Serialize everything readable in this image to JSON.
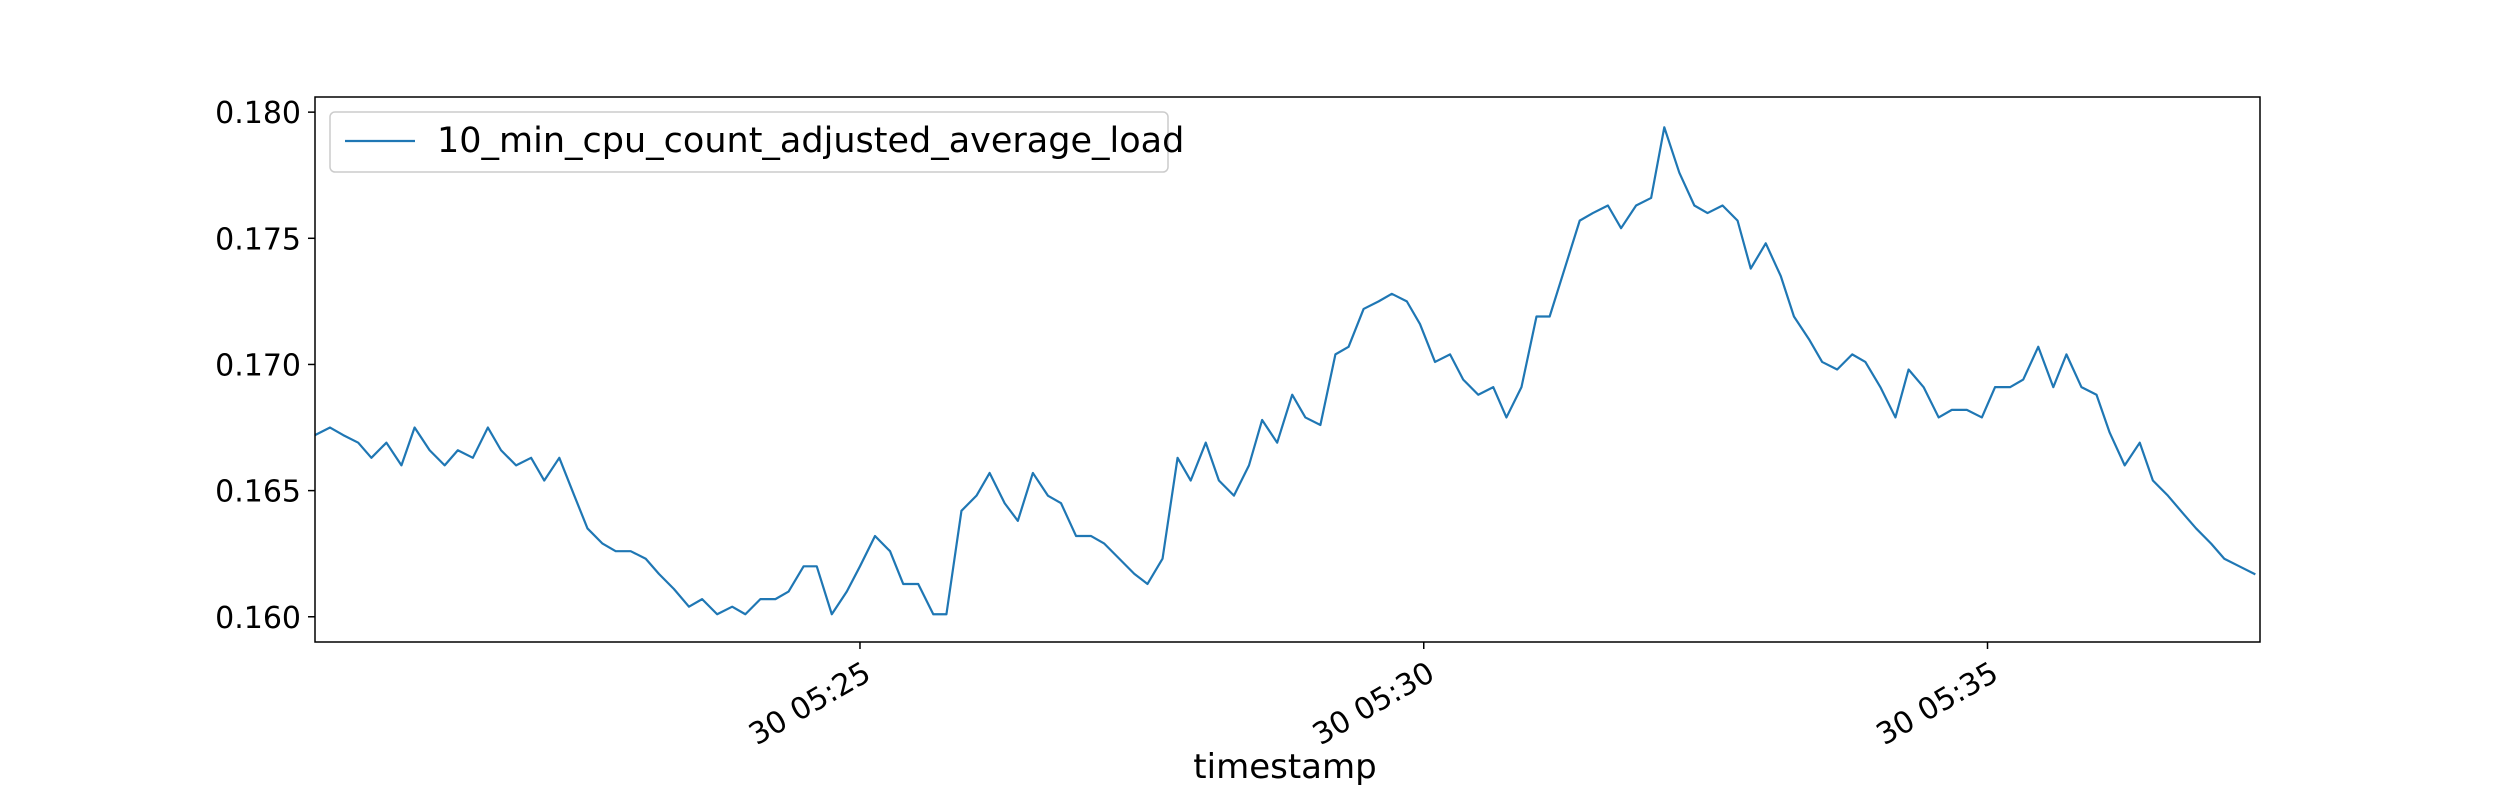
{
  "chart_data": {
    "type": "line",
    "title": "",
    "xlabel": "timestamp",
    "ylabel": "",
    "ylim": [
      0.159,
      0.1806
    ],
    "yticks": [
      0.16,
      0.165,
      0.17,
      0.175,
      0.18
    ],
    "ytick_labels": [
      "0.160",
      "0.165",
      "0.170",
      "0.175",
      "0.180"
    ],
    "xlim": [
      "30 05:20:10",
      "30 05:37:25"
    ],
    "xticks": [
      "30 05:25:00",
      "30 05:30:00",
      "30 05:35:00"
    ],
    "xtick_labels": [
      "30 05:25",
      "30 05:30",
      "30 05:35"
    ],
    "grid": false,
    "legend_position": "upper-left",
    "series": [
      {
        "name": "10_min_cpu_count_adjusted_average_load",
        "color": "#1f77b4",
        "x": [
          "30 05:20:10",
          "30 05:20:18",
          "30 05:20:25",
          "30 05:20:33",
          "30 05:20:40",
          "30 05:20:48",
          "30 05:20:56",
          "30 05:21:03",
          "30 05:21:11",
          "30 05:21:19",
          "30 05:21:26",
          "30 05:21:34",
          "30 05:21:42",
          "30 05:21:49",
          "30 05:21:57",
          "30 05:22:05",
          "30 05:22:12",
          "30 05:22:20",
          "30 05:22:28",
          "30 05:22:35",
          "30 05:22:43",
          "30 05:22:50",
          "30 05:22:58",
          "30 05:23:06",
          "30 05:23:13",
          "30 05:23:21",
          "30 05:23:29",
          "30 05:23:36",
          "30 05:23:44",
          "30 05:23:52",
          "30 05:23:59",
          "30 05:24:07",
          "30 05:24:15",
          "30 05:24:22",
          "30 05:24:30",
          "30 05:24:37",
          "30 05:24:45",
          "30 05:24:53",
          "30 05:25:00",
          "30 05:25:08",
          "30 05:25:16",
          "30 05:25:23",
          "30 05:25:31",
          "30 05:25:39",
          "30 05:25:46",
          "30 05:25:54",
          "30 05:26:02",
          "30 05:26:09",
          "30 05:26:17",
          "30 05:26:24",
          "30 05:26:32",
          "30 05:26:40",
          "30 05:26:47",
          "30 05:26:55",
          "30 05:27:03",
          "30 05:27:10",
          "30 05:27:18",
          "30 05:27:26",
          "30 05:27:33",
          "30 05:27:41",
          "30 05:27:49",
          "30 05:27:56",
          "30 05:28:04",
          "30 05:28:11",
          "30 05:28:19",
          "30 05:28:27",
          "30 05:28:34",
          "30 05:28:42",
          "30 05:28:50",
          "30 05:28:57",
          "30 05:29:05",
          "30 05:29:13",
          "30 05:29:20",
          "30 05:29:28",
          "30 05:29:36",
          "30 05:29:43",
          "30 05:29:51",
          "30 05:29:58",
          "30 05:30:06",
          "30 05:30:14",
          "30 05:30:21",
          "30 05:30:29",
          "30 05:30:37",
          "30 05:30:44",
          "30 05:30:52",
          "30 05:31:00",
          "30 05:31:07",
          "30 05:31:15",
          "30 05:31:23",
          "30 05:31:30",
          "30 05:31:38",
          "30 05:31:45",
          "30 05:31:53",
          "30 05:32:01",
          "30 05:32:08",
          "30 05:32:16",
          "30 05:32:24",
          "30 05:32:31",
          "30 05:32:39",
          "30 05:32:47",
          "30 05:32:54",
          "30 05:33:02",
          "30 05:33:10",
          "30 05:33:17",
          "30 05:33:25",
          "30 05:33:32",
          "30 05:33:40",
          "30 05:33:48",
          "30 05:33:55",
          "30 05:34:03",
          "30 05:34:11",
          "30 05:34:18",
          "30 05:34:26",
          "30 05:34:34",
          "30 05:34:41",
          "30 05:34:49",
          "30 05:34:57",
          "30 05:35:04",
          "30 05:35:12",
          "30 05:35:19",
          "30 05:35:27",
          "30 05:35:35",
          "30 05:35:42",
          "30 05:35:50",
          "30 05:35:58",
          "30 05:36:05",
          "30 05:36:13",
          "30 05:36:21",
          "30 05:36:28",
          "30 05:36:36",
          "30 05:36:44",
          "30 05:36:51",
          "30 05:36:59",
          "30 05:37:06",
          "30 05:37:14",
          "30 05:37:22"
        ],
        "y": [
          0.1672,
          0.1675,
          0.1672,
          0.1669,
          0.1663,
          0.1669,
          0.166,
          0.1675,
          0.1666,
          0.166,
          0.1666,
          0.1663,
          0.1675,
          0.1666,
          0.166,
          0.1663,
          0.1654,
          0.1663,
          0.1648,
          0.1635,
          0.1629,
          0.1626,
          0.1626,
          0.1623,
          0.1617,
          0.1611,
          0.1604,
          0.1607,
          0.1601,
          0.1604,
          0.1601,
          0.1607,
          0.1607,
          0.161,
          0.162,
          0.162,
          0.1601,
          0.161,
          0.162,
          0.1632,
          0.1626,
          0.1613,
          0.1613,
          0.1601,
          0.1601,
          0.1642,
          0.1648,
          0.1657,
          0.1645,
          0.1638,
          0.1657,
          0.1648,
          0.1645,
          0.1632,
          0.1632,
          0.1629,
          0.1623,
          0.1617,
          0.1613,
          0.1623,
          0.1663,
          0.1654,
          0.1669,
          0.1654,
          0.1648,
          0.166,
          0.1678,
          0.1669,
          0.1688,
          0.1679,
          0.1676,
          0.1704,
          0.1707,
          0.1722,
          0.1725,
          0.1728,
          0.1725,
          0.1716,
          0.1701,
          0.1704,
          0.1694,
          0.1688,
          0.1691,
          0.1679,
          0.1691,
          0.1719,
          0.1719,
          0.1738,
          0.1757,
          0.176,
          0.1763,
          0.1754,
          0.1763,
          0.1766,
          0.1794,
          0.1776,
          0.1763,
          0.176,
          0.1763,
          0.1757,
          0.1738,
          0.1748,
          0.1735,
          0.1719,
          0.171,
          0.1701,
          0.1698,
          0.1704,
          0.1701,
          0.1691,
          0.1679,
          0.1698,
          0.1691,
          0.1679,
          0.1682,
          0.1682,
          0.1679,
          0.1691,
          0.1691,
          0.1694,
          0.1707,
          0.1691,
          0.1704,
          0.1691,
          0.1688,
          0.1673,
          0.166,
          0.1669,
          0.1654,
          0.1648,
          0.1641,
          0.1635,
          0.1629,
          0.1623,
          0.162,
          0.1617
        ]
      }
    ]
  }
}
